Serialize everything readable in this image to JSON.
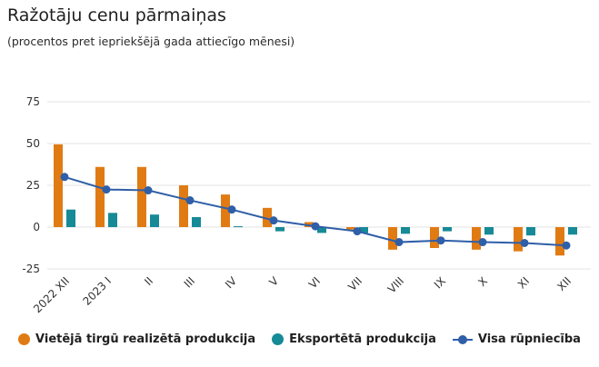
{
  "title": "Ražotāju cenu pārmaiņas",
  "subtitle": "(procentos pret iepriekšējā gada attiecīgo mēnesi)",
  "colors": {
    "domestic": "#e07b14",
    "export": "#178a97",
    "total": "#2f5fa8",
    "grid": "#e3e3e3",
    "axis_text": "#333333"
  },
  "chart_data": {
    "type": "bar",
    "categories": [
      "2022 XII",
      "2023 I",
      "II",
      "III",
      "IV",
      "V",
      "VI",
      "VII",
      "VIII",
      "IX",
      "X",
      "XI",
      "XII"
    ],
    "ylim": [
      -25,
      75
    ],
    "yticks": [
      -25,
      0,
      25,
      50,
      75
    ],
    "grid": true,
    "legend_position": "bottom",
    "series": [
      {
        "name": "Vietējā tirgū realizētā produkcija",
        "type": "bar",
        "values": [
          49.5,
          36,
          36,
          25,
          19.5,
          11.5,
          3,
          -1.5,
          -13.5,
          -12.5,
          -13.5,
          -14.5,
          -17
        ]
      },
      {
        "name": "Eksportētā produkcija",
        "type": "bar",
        "values": [
          10.5,
          8.5,
          7.5,
          6,
          0.5,
          -2.5,
          -3.5,
          -3.5,
          -4,
          -2.5,
          -4.5,
          -5,
          -4.5
        ]
      },
      {
        "name": "Visa rūpniecība",
        "type": "line",
        "values": [
          30,
          22.5,
          22,
          16,
          10.5,
          4,
          0.5,
          -2.5,
          -9,
          -8,
          -9,
          -9.5,
          -11
        ]
      }
    ]
  }
}
